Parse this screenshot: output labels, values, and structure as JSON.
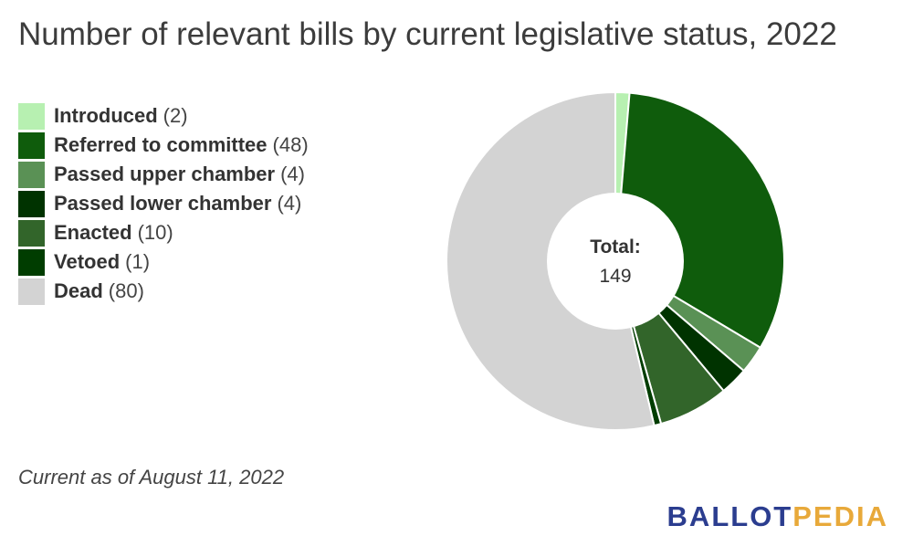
{
  "chart_data": {
    "type": "pie",
    "title": "Number of relevant bills by current legislative status, 2022",
    "categories": [
      "Introduced",
      "Referred to committee",
      "Passed upper chamber",
      "Passed lower chamber",
      "Enacted",
      "Vetoed",
      "Dead"
    ],
    "values": [
      2,
      48,
      4,
      4,
      10,
      1,
      80
    ],
    "colors": [
      "#b7f0b1",
      "#0f5c0c",
      "#5a9155",
      "#003300",
      "#32652a",
      "#003d00",
      "#d3d3d3"
    ],
    "legend_labels": [
      "(2)",
      "(48)",
      "(4)",
      "(4)",
      "(10)",
      "(1)",
      "(80)"
    ],
    "legend_position": "left",
    "donut": true,
    "center_label": "Total:",
    "center_value": "149"
  },
  "footnote": "Current as of August 11, 2022",
  "logo": {
    "part1": "BALLOT",
    "part2": "PEDIA"
  }
}
